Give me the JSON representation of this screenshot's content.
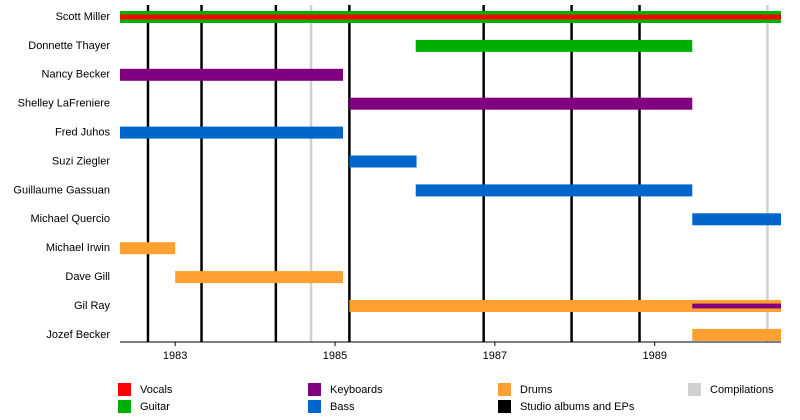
{
  "chart_data": {
    "type": "timeline",
    "xlim": [
      1982.31,
      1990.58
    ],
    "xticks": [
      1983,
      1985,
      1987,
      1989
    ],
    "rows": [
      "Scott Miller",
      "Donnette Thayer",
      "Nancy Becker",
      "Shelley LaFreniere",
      "Fred Juhos",
      "Suzi Ziegler",
      "Guillaume Gassuan",
      "Michael Quercio",
      "Michael Irwin",
      "Dave Gill",
      "Gil Ray",
      "Jozef Becker"
    ],
    "series": [
      {
        "name": "Vocals",
        "color": "#ff0000",
        "bars": [
          {
            "row": "Scott Miller",
            "start": 1982.31,
            "end": 1990.58
          }
        ]
      },
      {
        "name": "Guitar",
        "color": "#00b000",
        "bars": [
          {
            "row": "Scott Miller",
            "start": 1982.31,
            "end": 1990.58
          },
          {
            "row": "Donnette Thayer",
            "start": 1986.01,
            "end": 1989.47
          }
        ]
      },
      {
        "name": "Keyboards",
        "color": "#800080",
        "bars": [
          {
            "row": "Nancy Becker",
            "start": 1982.31,
            "end": 1985.1
          },
          {
            "row": "Shelley LaFreniere",
            "start": 1985.18,
            "end": 1989.47
          },
          {
            "row": "Gil Ray",
            "start": 1989.47,
            "end": 1990.58
          }
        ]
      },
      {
        "name": "Bass",
        "color": "#0066cc",
        "bars": [
          {
            "row": "Fred Juhos",
            "start": 1982.31,
            "end": 1985.1
          },
          {
            "row": "Suzi Ziegler",
            "start": 1985.18,
            "end": 1986.02
          },
          {
            "row": "Guillaume Gassuan",
            "start": 1986.01,
            "end": 1989.47
          },
          {
            "row": "Michael Quercio",
            "start": 1989.47,
            "end": 1990.58
          }
        ]
      },
      {
        "name": "Drums",
        "color": "#ffa030",
        "bars": [
          {
            "row": "Michael Irwin",
            "start": 1982.31,
            "end": 1983.0
          },
          {
            "row": "Dave Gill",
            "start": 1983.0,
            "end": 1985.1
          },
          {
            "row": "Gil Ray",
            "start": 1985.18,
            "end": 1990.58
          },
          {
            "row": "Jozef Becker",
            "start": 1989.47,
            "end": 1990.58
          }
        ]
      }
    ],
    "events": [
      {
        "name": "Studio albums and EPs",
        "color": "#000000",
        "x": [
          1982.66,
          1983.33,
          1984.26,
          1985.18,
          1986.86,
          1987.96,
          1988.81
        ]
      },
      {
        "name": "Compilations",
        "color": "#d0d0d0",
        "x": [
          1984.7,
          1990.41
        ]
      }
    ]
  }
}
